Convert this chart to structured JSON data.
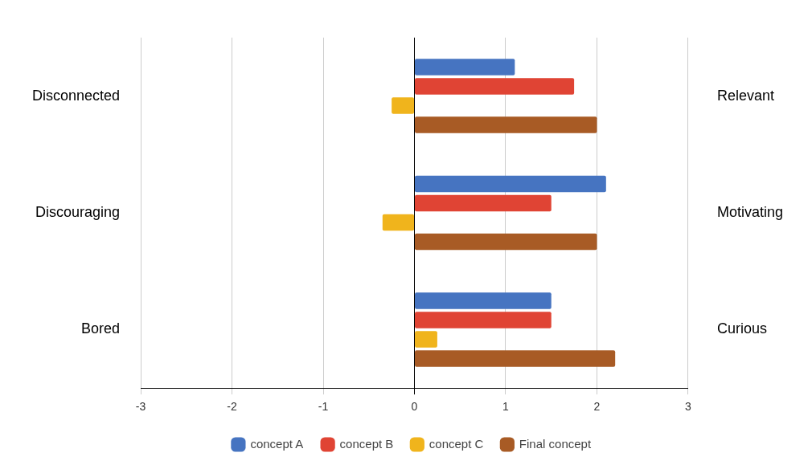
{
  "chart_data": {
    "type": "bar",
    "orientation": "horizontal",
    "categories": [
      "Disconnected",
      "Discouraging",
      "Bored"
    ],
    "y2_categories": [
      "Relevant",
      "Motivating",
      "Curious"
    ],
    "series": [
      {
        "name": "concept A",
        "color": "#4674c1",
        "values": [
          1.1,
          2.1,
          1.5
        ]
      },
      {
        "name": "concept B",
        "color": "#e04434",
        "values": [
          1.75,
          1.5,
          1.5
        ]
      },
      {
        "name": "concept C",
        "color": "#f0b41c",
        "values": [
          -0.25,
          -0.35,
          0.25
        ]
      },
      {
        "name": "Final concept",
        "color": "#a85b25",
        "values": [
          2,
          2,
          2.2
        ]
      }
    ],
    "xlim": [
      -3,
      3
    ],
    "xticks": [
      -3,
      -2,
      -1,
      0,
      1,
      2,
      3
    ],
    "grid": "x",
    "legend": "bottom"
  }
}
